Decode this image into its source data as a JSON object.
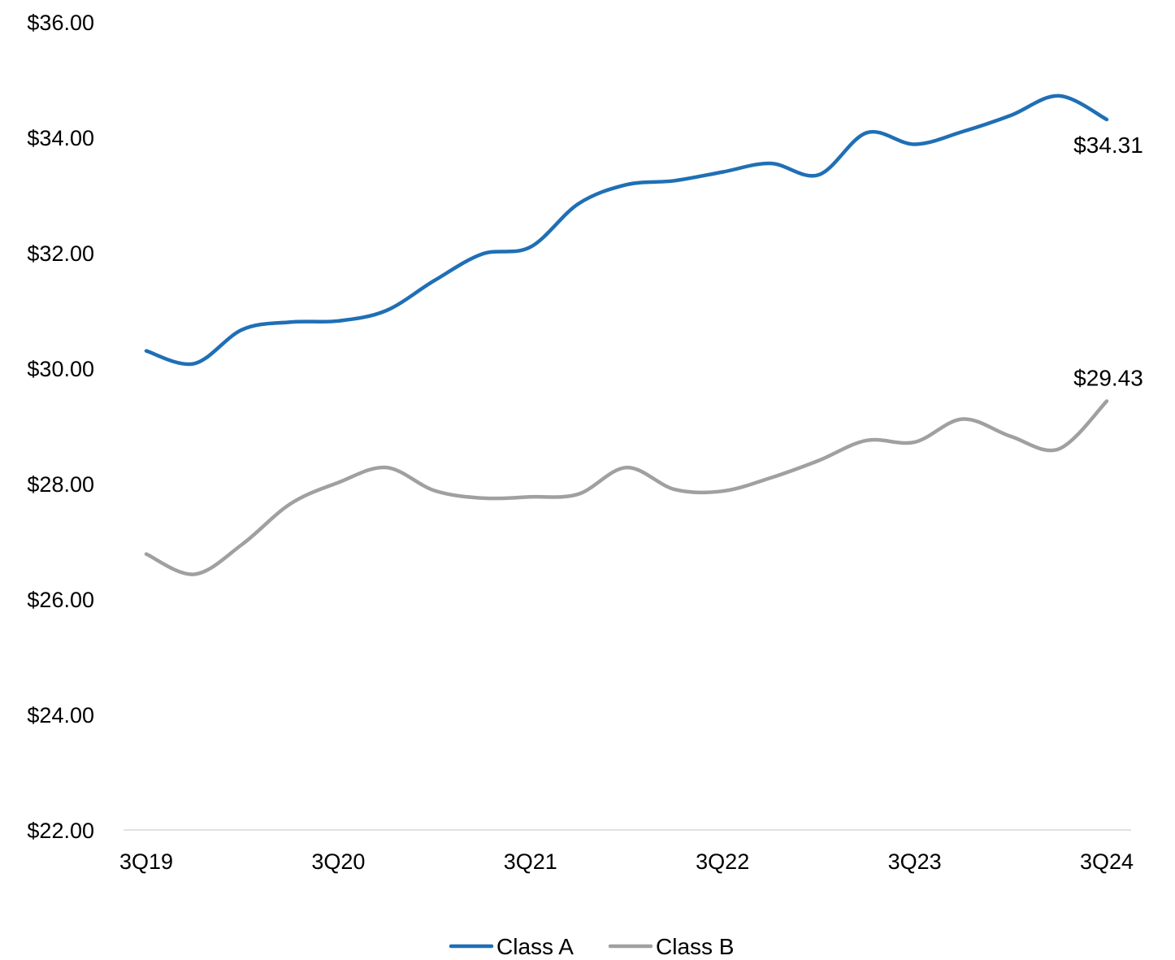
{
  "chart_data": {
    "type": "line",
    "title": "",
    "xlabel": "",
    "ylabel": "",
    "categories": [
      "3Q19",
      "4Q19",
      "1Q20",
      "2Q20",
      "3Q20",
      "4Q20",
      "1Q21",
      "2Q21",
      "3Q21",
      "4Q21",
      "1Q22",
      "2Q22",
      "3Q22",
      "4Q22",
      "1Q23",
      "2Q23",
      "3Q23",
      "4Q23",
      "1Q24",
      "2Q24",
      "3Q24"
    ],
    "x_tick_labels": [
      "3Q19",
      "",
      "",
      "",
      "3Q20",
      "",
      "",
      "",
      "3Q21",
      "",
      "",
      "",
      "3Q22",
      "",
      "",
      "",
      "3Q23",
      "",
      "",
      "",
      "3Q24"
    ],
    "ylim": [
      22,
      36
    ],
    "y_ticks": [
      22,
      24,
      26,
      28,
      30,
      32,
      34,
      36
    ],
    "y_tick_labels": [
      "$22.00",
      "$24.00",
      "$26.00",
      "$28.00",
      "$30.00",
      "$32.00",
      "$34.00",
      "$36.00"
    ],
    "grid": false,
    "legend_position": "bottom-center",
    "series": [
      {
        "name": "Class A",
        "color": "#1F6FB5",
        "values": [
          30.3,
          30.08,
          30.67,
          30.8,
          30.82,
          31.0,
          31.52,
          31.98,
          32.1,
          32.85,
          33.18,
          33.25,
          33.4,
          33.55,
          33.35,
          34.08,
          33.88,
          34.1,
          34.38,
          34.72,
          34.31
        ],
        "end_label": "$34.31"
      },
      {
        "name": "Class B",
        "color": "#A0A0A0",
        "values": [
          26.78,
          26.43,
          26.95,
          27.65,
          28.02,
          28.28,
          27.88,
          27.75,
          27.77,
          27.82,
          28.28,
          27.9,
          27.87,
          28.1,
          28.4,
          28.75,
          28.72,
          29.12,
          28.82,
          28.6,
          29.43
        ],
        "end_label": "$29.43"
      }
    ]
  }
}
